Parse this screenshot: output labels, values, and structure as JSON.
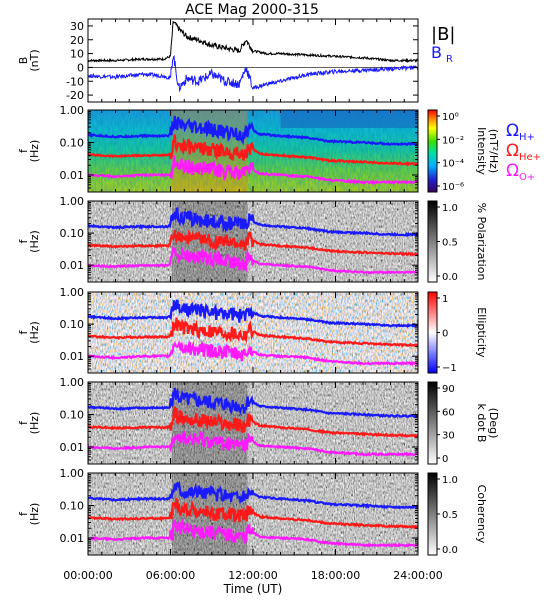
{
  "chart_data": [
    {
      "type": "line",
      "title": "ACE Mag 2000-315",
      "ylabel": "B\n(nT)",
      "ylim": [
        -25,
        35
      ],
      "yticks": [
        30,
        20,
        10,
        0,
        -10,
        -20
      ],
      "series": [
        {
          "name": "|B|",
          "color": "#000000",
          "x": [
            0,
            2,
            4,
            5.5,
            6.0,
            6.2,
            6.6,
            7.2,
            8.0,
            9.0,
            10.0,
            11.0,
            11.5,
            12.0,
            13.0,
            14.0,
            16.0,
            18.0,
            20.0,
            22.0,
            24.0
          ],
          "y": [
            5,
            5,
            6,
            6,
            8,
            33,
            28,
            22,
            20,
            16,
            14,
            12,
            20,
            12,
            10,
            10,
            9,
            8,
            7,
            5,
            5
          ]
        },
        {
          "name": "B",
          "subscript": "R",
          "color": "#1a1aff",
          "x": [
            0,
            2,
            4,
            5.5,
            6.0,
            6.2,
            6.6,
            7.2,
            8.0,
            9.0,
            10.0,
            11.0,
            11.5,
            12.0,
            13.0,
            14.0,
            16.0,
            18.0,
            20.0,
            22.0,
            24.0
          ],
          "y": [
            -6,
            -7,
            -5,
            -6,
            -8,
            10,
            -15,
            -8,
            -10,
            -5,
            -10,
            -12,
            0,
            -15,
            -12,
            -10,
            -5,
            -3,
            -2,
            -1,
            0
          ]
        }
      ]
    },
    {
      "type": "heatmap",
      "ylabel": "f\n(Hz)",
      "colorbar_label": "Intensity\n(nT²/Hz)",
      "colorbar_ticks": [
        "10⁰",
        "10⁻²",
        "10⁻⁴",
        "10⁻⁶"
      ]
    },
    {
      "type": "heatmap",
      "ylabel": "f\n(Hz)",
      "colorbar_label": "% Polarization",
      "colorbar_ticks": [
        "1.0",
        "0.5",
        "0.0"
      ]
    },
    {
      "type": "heatmap",
      "ylabel": "f\n(Hz)",
      "colorbar_label": "Ellipticity",
      "colorbar_ticks": [
        "1",
        "0",
        "−1"
      ]
    },
    {
      "type": "heatmap",
      "ylabel": "f\n(Hz)",
      "colorbar_label": "k dot B\n(Deg)",
      "colorbar_ticks": [
        "90",
        "60",
        "30",
        "0"
      ]
    },
    {
      "type": "heatmap",
      "ylabel": "f\n(Hz)",
      "colorbar_label": "Coherency",
      "colorbar_ticks": [
        "1.0",
        "0.5",
        "0.0"
      ]
    }
  ],
  "shared": {
    "xlabel": "Time (UT)",
    "xlim": [
      0,
      24
    ],
    "xtick_labels": [
      "00:00:00",
      "06:00:00",
      "12:00:00",
      "18:00:00",
      "24:00:00"
    ],
    "freq_ticks": [
      "1.00",
      "0.10",
      "0.01"
    ],
    "freq_range_hz": [
      0.003,
      1.0
    ]
  },
  "gyrofrequency_legend": [
    {
      "symbol": "Ω",
      "subscript": "H+",
      "color": "#1a1aff"
    },
    {
      "symbol": "Ω",
      "subscript": "He+",
      "color": "#ff1a1a"
    },
    {
      "symbol": "Ω",
      "subscript": "O+",
      "color": "#ff1aff"
    }
  ],
  "gyrofrequency_traces": {
    "x": [
      0,
      2,
      4,
      5.8,
      6.0,
      6.3,
      6.8,
      7.5,
      8.5,
      9.5,
      10.5,
      11.4,
      11.7,
      12.5,
      14,
      16,
      17.5,
      20,
      22,
      24
    ],
    "H+": [
      0.17,
      0.15,
      0.16,
      0.16,
      0.18,
      0.45,
      0.3,
      0.28,
      0.25,
      0.22,
      0.2,
      0.17,
      0.28,
      0.18,
      0.16,
      0.14,
      0.11,
      0.1,
      0.09,
      0.09
    ],
    "He+": [
      0.042,
      0.038,
      0.04,
      0.04,
      0.045,
      0.11,
      0.075,
      0.07,
      0.062,
      0.055,
      0.05,
      0.043,
      0.07,
      0.045,
      0.04,
      0.035,
      0.028,
      0.025,
      0.023,
      0.022
    ],
    "O+": [
      0.01,
      0.009,
      0.01,
      0.01,
      0.011,
      0.028,
      0.019,
      0.017,
      0.016,
      0.014,
      0.012,
      0.011,
      0.017,
      0.011,
      0.01,
      0.009,
      0.007,
      0.006,
      0.006,
      0.006
    ]
  }
}
